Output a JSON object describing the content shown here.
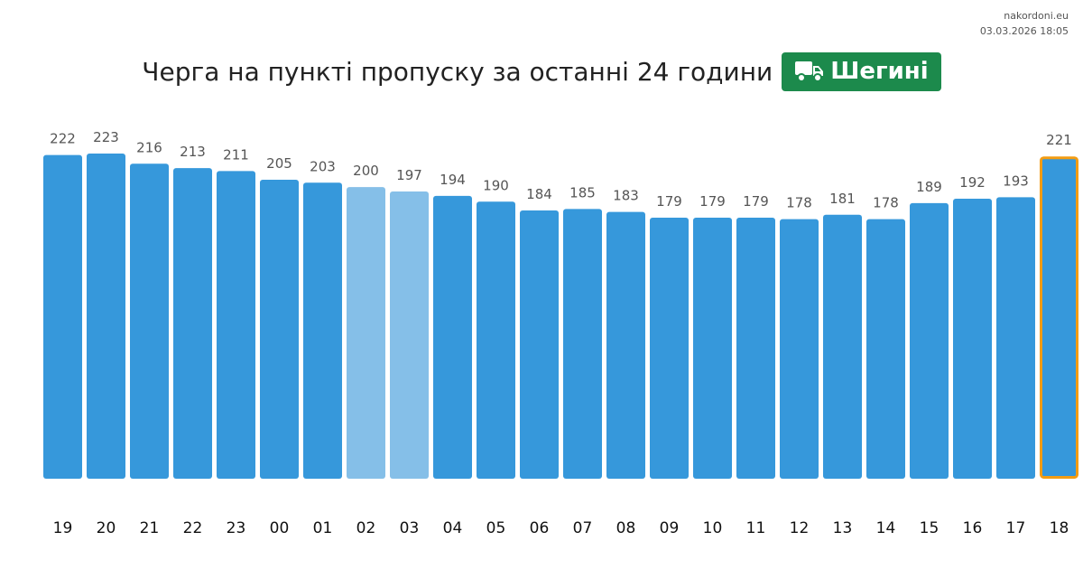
{
  "source": {
    "site": "nakordoni.eu",
    "timestamp": "03.03.2026 18:05"
  },
  "header": {
    "title": "Черга на пункті пропуску за останні 24 години",
    "badge": "Шегині",
    "badge_icon": "truck-icon"
  },
  "colors": {
    "bar": "#3698DB",
    "bar_light": "#85BFE8",
    "highlight_border": "#F39C12",
    "badge": "#1C8A4C"
  },
  "chart_data": {
    "type": "bar",
    "categories": [
      "19",
      "20",
      "21",
      "22",
      "23",
      "00",
      "01",
      "02",
      "03",
      "04",
      "05",
      "06",
      "07",
      "08",
      "09",
      "10",
      "11",
      "12",
      "13",
      "14",
      "15",
      "16",
      "17",
      "18"
    ],
    "values": [
      222,
      223,
      216,
      213,
      211,
      205,
      203,
      200,
      197,
      194,
      190,
      184,
      185,
      183,
      179,
      179,
      179,
      178,
      181,
      178,
      189,
      192,
      193,
      221
    ],
    "light_bars": [
      "02",
      "03"
    ],
    "highlighted_bar": "18",
    "ylim": [
      0,
      223
    ],
    "grid": false,
    "xlabel": "",
    "ylabel": ""
  }
}
